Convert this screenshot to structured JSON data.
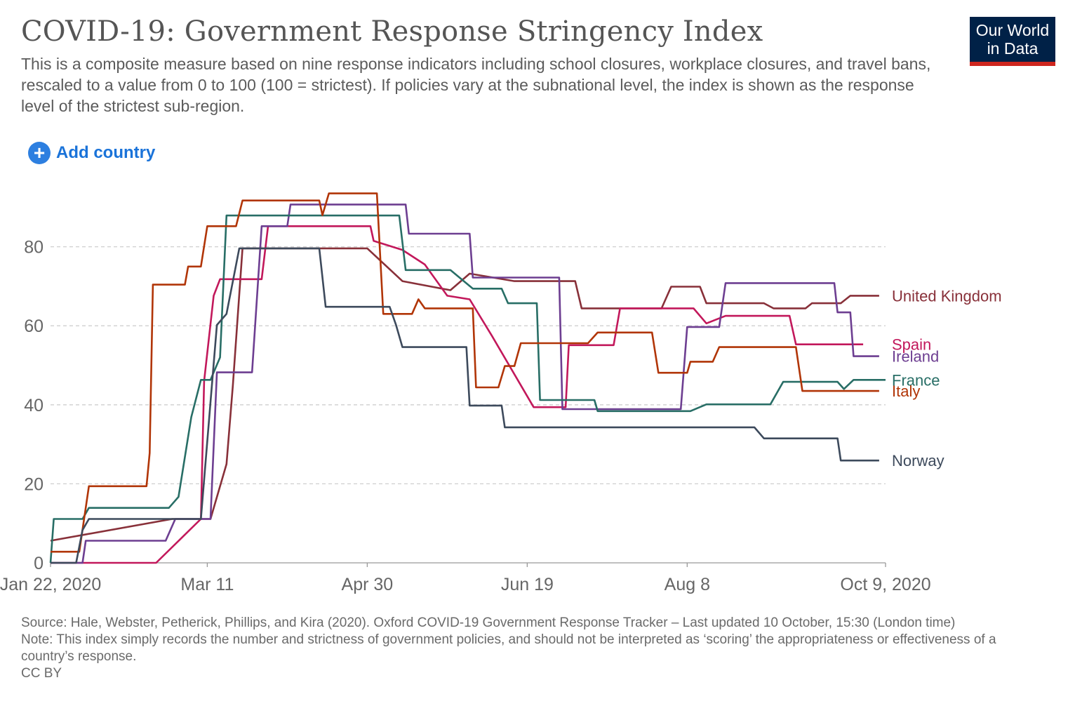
{
  "header": {
    "title": "COVID-19: Government Response Stringency Index",
    "subtitle": "This is a composite measure based on nine response indicators including school closures, workplace closures, and travel bans, rescaled to a value from 0 to 100 (100 = strictest). If policies vary at the subnational level, the index is shown as the response level of the strictest sub-region."
  },
  "logo": {
    "line1": "Our World",
    "line2": "in Data"
  },
  "controls": {
    "add_country_label": "Add country",
    "add_icon": "plus-circle-icon"
  },
  "chart_data": {
    "type": "line",
    "title": "COVID-19: Government Response Stringency Index",
    "xlabel": "",
    "ylabel": "",
    "x_range": [
      "2020-01-22",
      "2020-10-09"
    ],
    "ylim": [
      0,
      100
    ],
    "y_ticks": [
      0,
      20,
      40,
      60,
      80
    ],
    "x_ticks": [
      {
        "date": "2020-01-22",
        "label": "Jan 22, 2020"
      },
      {
        "date": "2020-03-11",
        "label": "Mar 11"
      },
      {
        "date": "2020-04-30",
        "label": "Apr 30"
      },
      {
        "date": "2020-06-19",
        "label": "Jun 19"
      },
      {
        "date": "2020-08-08",
        "label": "Aug 8"
      },
      {
        "date": "2020-10-09",
        "label": "Oct 9, 2020"
      }
    ],
    "grid": "horizontal-dashed",
    "legend": "right-end-labels",
    "series": [
      {
        "name": "United Kingdom",
        "color": "#883039",
        "label_y": 67.6,
        "points": [
          [
            "2020-01-22",
            5.6
          ],
          [
            "2020-02-29",
            11.1
          ],
          [
            "2020-03-12",
            11.1
          ],
          [
            "2020-03-17",
            25
          ],
          [
            "2020-03-19",
            45
          ],
          [
            "2020-03-22",
            79.6
          ],
          [
            "2020-04-30",
            79.6
          ],
          [
            "2020-05-11",
            71.3
          ],
          [
            "2020-05-26",
            69
          ],
          [
            "2020-06-01",
            73.2
          ],
          [
            "2020-06-15",
            71.3
          ],
          [
            "2020-07-04",
            71.3
          ],
          [
            "2020-07-06",
            64.4
          ],
          [
            "2020-07-31",
            64.4
          ],
          [
            "2020-08-03",
            69.9
          ],
          [
            "2020-08-12",
            69.9
          ],
          [
            "2020-08-14",
            65.7
          ],
          [
            "2020-09-01",
            65.7
          ],
          [
            "2020-09-04",
            64.4
          ],
          [
            "2020-09-14",
            64.4
          ],
          [
            "2020-09-16",
            65.7
          ],
          [
            "2020-09-25",
            65.7
          ],
          [
            "2020-09-28",
            67.6
          ],
          [
            "2020-10-07",
            67.6
          ]
        ]
      },
      {
        "name": "Spain",
        "color": "#c2185b",
        "label_y": 55.3,
        "points": [
          [
            "2020-01-22",
            0
          ],
          [
            "2020-02-24",
            0
          ],
          [
            "2020-03-09",
            11.1
          ],
          [
            "2020-03-10",
            46
          ],
          [
            "2020-03-13",
            67.6
          ],
          [
            "2020-03-15",
            71.8
          ],
          [
            "2020-03-28",
            71.8
          ],
          [
            "2020-03-30",
            85.2
          ],
          [
            "2020-05-01",
            85.2
          ],
          [
            "2020-05-02",
            81.5
          ],
          [
            "2020-05-11",
            79.2
          ],
          [
            "2020-05-18",
            75.5
          ],
          [
            "2020-05-25",
            67.6
          ],
          [
            "2020-06-01",
            66.7
          ],
          [
            "2020-06-08",
            57.4
          ],
          [
            "2020-06-21",
            39.4
          ],
          [
            "2020-07-01",
            39.4
          ],
          [
            "2020-07-02",
            55.1
          ],
          [
            "2020-07-16",
            55.1
          ],
          [
            "2020-07-18",
            64.4
          ],
          [
            "2020-08-10",
            64.4
          ],
          [
            "2020-08-14",
            60.6
          ],
          [
            "2020-08-20",
            62.5
          ],
          [
            "2020-09-09",
            62.5
          ],
          [
            "2020-09-11",
            55.3
          ],
          [
            "2020-10-02",
            55.3
          ]
        ]
      },
      {
        "name": "Ireland",
        "color": "#6d3e91",
        "label_y": 52.3,
        "points": [
          [
            "2020-01-22",
            0
          ],
          [
            "2020-02-01",
            0
          ],
          [
            "2020-02-02",
            5.6
          ],
          [
            "2020-02-27",
            5.6
          ],
          [
            "2020-03-01",
            11.1
          ],
          [
            "2020-03-12",
            11.1
          ],
          [
            "2020-03-14",
            48.2
          ],
          [
            "2020-03-25",
            48.2
          ],
          [
            "2020-03-28",
            85.2
          ],
          [
            "2020-04-05",
            85.2
          ],
          [
            "2020-04-06",
            90.7
          ],
          [
            "2020-05-12",
            90.7
          ],
          [
            "2020-05-13",
            83.3
          ],
          [
            "2020-06-01",
            83.3
          ],
          [
            "2020-06-02",
            72.2
          ],
          [
            "2020-06-18",
            72.2
          ],
          [
            "2020-06-29",
            72.2
          ],
          [
            "2020-06-30",
            38.9
          ],
          [
            "2020-08-06",
            38.9
          ],
          [
            "2020-08-08",
            59.7
          ],
          [
            "2020-08-18",
            59.7
          ],
          [
            "2020-08-20",
            70.8
          ],
          [
            "2020-09-23",
            70.8
          ],
          [
            "2020-09-24",
            63.4
          ],
          [
            "2020-09-28",
            63.4
          ],
          [
            "2020-09-29",
            52.3
          ],
          [
            "2020-10-07",
            52.3
          ]
        ]
      },
      {
        "name": "France",
        "color": "#286e66",
        "label_y": 46.3,
        "points": [
          [
            "2020-01-22",
            0
          ],
          [
            "2020-01-23",
            11.1
          ],
          [
            "2020-02-01",
            11.1
          ],
          [
            "2020-02-03",
            13.9
          ],
          [
            "2020-02-28",
            13.9
          ],
          [
            "2020-03-02",
            16.7
          ],
          [
            "2020-03-06",
            36.9
          ],
          [
            "2020-03-09",
            46.3
          ],
          [
            "2020-03-12",
            46.3
          ],
          [
            "2020-03-15",
            52
          ],
          [
            "2020-03-17",
            87.9
          ],
          [
            "2020-05-10",
            87.9
          ],
          [
            "2020-05-12",
            74.1
          ],
          [
            "2020-05-26",
            74.1
          ],
          [
            "2020-06-02",
            69.4
          ],
          [
            "2020-06-11",
            69.4
          ],
          [
            "2020-06-13",
            65.7
          ],
          [
            "2020-06-22",
            65.7
          ],
          [
            "2020-06-23",
            41.2
          ],
          [
            "2020-07-10",
            41.2
          ],
          [
            "2020-07-11",
            38.4
          ],
          [
            "2020-08-09",
            38.4
          ],
          [
            "2020-08-14",
            40.1
          ],
          [
            "2020-09-03",
            40.1
          ],
          [
            "2020-09-07",
            45.8
          ],
          [
            "2020-09-24",
            45.8
          ],
          [
            "2020-09-26",
            44
          ],
          [
            "2020-09-29",
            46.3
          ],
          [
            "2020-10-09",
            46.3
          ]
        ]
      },
      {
        "name": "Italy",
        "color": "#b13507",
        "label_y": 43.5,
        "points": [
          [
            "2020-01-22",
            2.8
          ],
          [
            "2020-01-31",
            2.8
          ],
          [
            "2020-02-03",
            19.4
          ],
          [
            "2020-02-21",
            19.4
          ],
          [
            "2020-02-22",
            27.8
          ],
          [
            "2020-02-23",
            70.4
          ],
          [
            "2020-03-04",
            70.4
          ],
          [
            "2020-03-05",
            75
          ],
          [
            "2020-03-09",
            75
          ],
          [
            "2020-03-11",
            85.2
          ],
          [
            "2020-03-20",
            85.2
          ],
          [
            "2020-03-22",
            91.7
          ],
          [
            "2020-04-15",
            91.7
          ],
          [
            "2020-04-16",
            88
          ],
          [
            "2020-04-18",
            93.5
          ],
          [
            "2020-05-03",
            93.5
          ],
          [
            "2020-05-05",
            63
          ],
          [
            "2020-05-14",
            63
          ],
          [
            "2020-05-16",
            66.7
          ],
          [
            "2020-05-18",
            64.4
          ],
          [
            "2020-06-02",
            64.4
          ],
          [
            "2020-06-03",
            44.4
          ],
          [
            "2020-06-10",
            44.4
          ],
          [
            "2020-06-12",
            49.8
          ],
          [
            "2020-06-15",
            49.8
          ],
          [
            "2020-06-17",
            55.6
          ],
          [
            "2020-07-08",
            55.6
          ],
          [
            "2020-07-11",
            58.3
          ],
          [
            "2020-07-21",
            58.3
          ],
          [
            "2020-07-28",
            58.3
          ],
          [
            "2020-07-30",
            48.1
          ],
          [
            "2020-08-08",
            48.1
          ],
          [
            "2020-08-09",
            50.9
          ],
          [
            "2020-08-16",
            50.9
          ],
          [
            "2020-08-18",
            54.6
          ],
          [
            "2020-09-11",
            54.6
          ],
          [
            "2020-09-13",
            43.5
          ],
          [
            "2020-10-07",
            43.5
          ]
        ]
      },
      {
        "name": "Norway",
        "color": "#3d4a5c",
        "label_y": 25.9,
        "points": [
          [
            "2020-01-22",
            0
          ],
          [
            "2020-01-30",
            0
          ],
          [
            "2020-02-01",
            8.3
          ],
          [
            "2020-02-03",
            11.1
          ],
          [
            "2020-03-09",
            11.1
          ],
          [
            "2020-03-12",
            40.7
          ],
          [
            "2020-03-14",
            60.2
          ],
          [
            "2020-03-17",
            63
          ],
          [
            "2020-03-21",
            79.6
          ],
          [
            "2020-04-15",
            79.6
          ],
          [
            "2020-04-17",
            64.8
          ],
          [
            "2020-05-07",
            64.8
          ],
          [
            "2020-05-09",
            60.2
          ],
          [
            "2020-05-11",
            54.6
          ],
          [
            "2020-05-31",
            54.6
          ],
          [
            "2020-06-01",
            39.8
          ],
          [
            "2020-06-11",
            39.8
          ],
          [
            "2020-06-12",
            34.3
          ],
          [
            "2020-08-29",
            34.3
          ],
          [
            "2020-09-01",
            31.5
          ],
          [
            "2020-09-24",
            31.5
          ],
          [
            "2020-09-25",
            25.9
          ],
          [
            "2020-10-07",
            25.9
          ]
        ]
      }
    ]
  },
  "footer": {
    "source": "Source: Hale, Webster, Petherick, Phillips, and Kira (2020). Oxford COVID-19 Government Response Tracker – Last updated 10 October, 15:30 (London time)",
    "note": "Note: This index simply records the number and strictness of government policies, and should not be interpreted as ‘scoring’ the appropriateness or effectiveness of a country’s response.",
    "license": "CC BY"
  }
}
